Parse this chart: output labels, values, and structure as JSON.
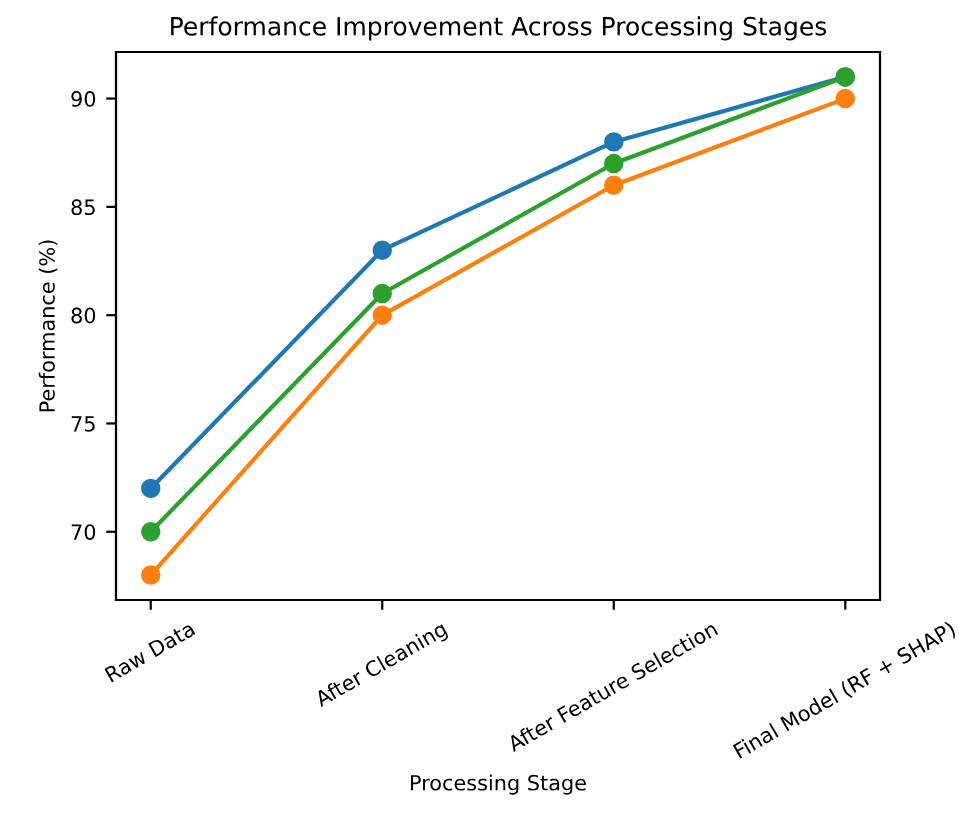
{
  "chart_data": {
    "type": "line",
    "title": "Performance Improvement Across Processing Stages",
    "xlabel": "Processing Stage",
    "ylabel": "Performance (%)",
    "categories": [
      "Raw Data",
      "After Cleaning",
      "After Feature Selection",
      "Final Model (RF + SHAP)"
    ],
    "series": [
      {
        "color": "#1f77b4",
        "values": [
          72,
          83,
          88,
          91
        ]
      },
      {
        "color": "#ff7f0e",
        "values": [
          68,
          80,
          86,
          90
        ]
      },
      {
        "color": "#2ca02c",
        "values": [
          70,
          81,
          87,
          91
        ]
      }
    ],
    "ylim": [
      66.85,
      92.15
    ],
    "yticks": [
      70,
      75,
      80,
      85,
      90
    ],
    "marker": "circle",
    "line_style": "solid",
    "grid": false
  }
}
